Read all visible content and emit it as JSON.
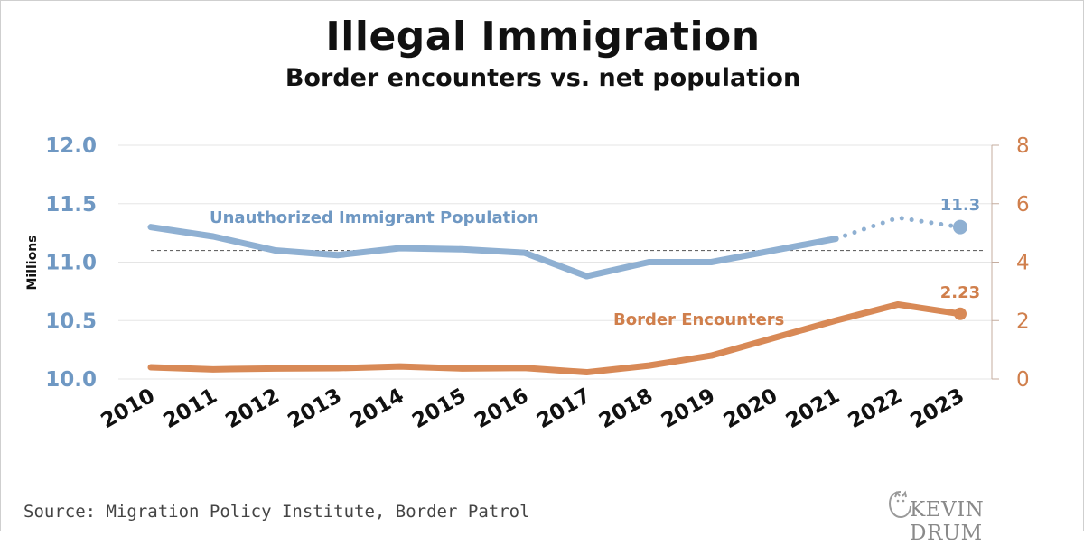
{
  "title": "Illegal Immigration",
  "subtitle": "Border encounters vs. net population",
  "source": "Source: Migration Policy Institute, Border Patrol",
  "brand": "KEVIN DRUM",
  "colors": {
    "population": "#8fb0d2",
    "population_text": "#6f98c3",
    "encounters": "#d88956",
    "encounters_text": "#d07f4c",
    "grid": "#e5e5e5",
    "reference_line": "#666666"
  },
  "chart_data": {
    "type": "line",
    "title": "Illegal Immigration",
    "subtitle": "Border encounters vs. net population",
    "ylabel": "Millions",
    "x": [
      "2010",
      "2011",
      "2012",
      "2013",
      "2014",
      "2015",
      "2016",
      "2017",
      "2018",
      "2019",
      "2020",
      "2021",
      "2022",
      "2023"
    ],
    "y_left": {
      "ylim": [
        10.0,
        12.0
      ],
      "ticks": [
        "10.0",
        "10.5",
        "11.0",
        "11.5",
        "12.0"
      ]
    },
    "y_right": {
      "ylim": [
        0,
        8
      ],
      "ticks": [
        "0",
        "2",
        "4",
        "6",
        "8"
      ]
    },
    "reference_value": 11.1,
    "grid": true,
    "series": [
      {
        "name": "Unauthorized Immigrant Population",
        "axis": "left",
        "values": [
          11.3,
          11.22,
          11.1,
          11.06,
          11.12,
          11.11,
          11.08,
          10.88,
          11.0,
          11.0,
          11.1,
          11.2,
          11.38,
          11.3
        ],
        "projected_from": "2021",
        "end_label": "11.3"
      },
      {
        "name": "Border Encounters",
        "axis": "right",
        "values": [
          0.4,
          0.33,
          0.36,
          0.37,
          0.43,
          0.36,
          0.38,
          0.23,
          0.46,
          0.8,
          1.4,
          2.0,
          2.55,
          2.23
        ],
        "end_label": "2.23"
      }
    ]
  }
}
